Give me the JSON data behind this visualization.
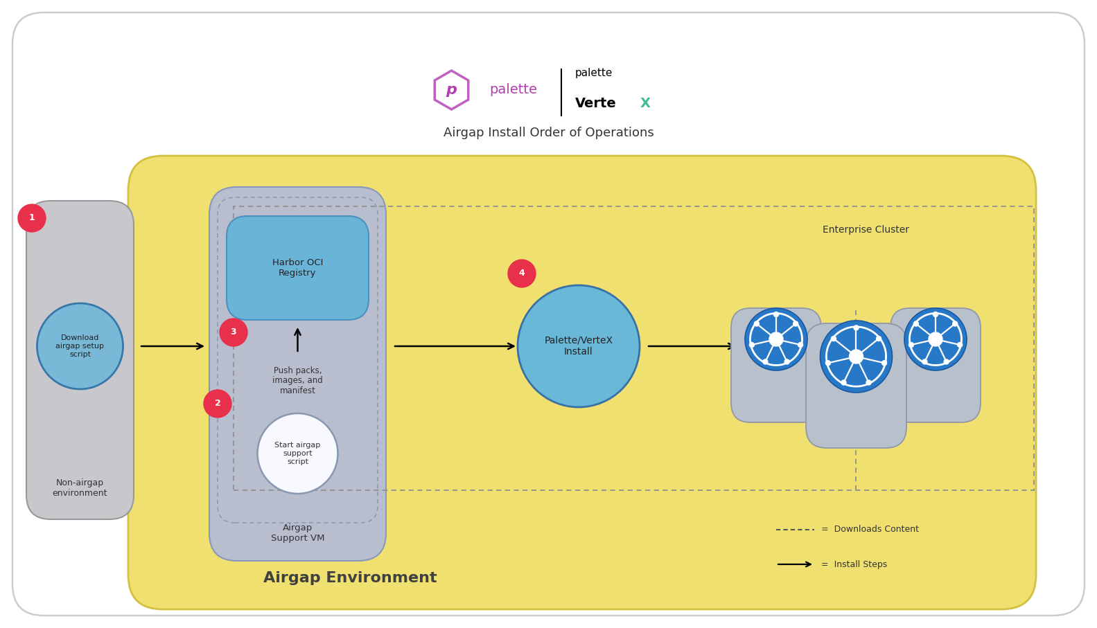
{
  "title": "Airgap Install Order of Operations",
  "bg_color": "#ffffff",
  "outer_border_color": "#cccccc",
  "airgap_env_color": "#f0e070",
  "airgap_env_border": "#d4c040",
  "nonairgap_box_color": "#c8c8cc",
  "nonairgap_box_border": "#999999",
  "support_vm_color": "#b8bece",
  "support_vm_border": "#8898b8",
  "harbor_box_color": "#6ab4d8",
  "harbor_box_border": "#4a90c0",
  "harbor_text": "Harbor OCI\nRegistry",
  "circle_color": "#7ab8d8",
  "circle_border": "#3878a8",
  "white_circle_color": "#f8f8ff",
  "white_circle_border": "#8898b0",
  "palette_install_color": "#6ab8d8",
  "palette_install_border": "#3870a8",
  "step_badge_color": "#e8304a",
  "step_badge_text_color": "#ffffff",
  "kubernetes_bg_color": "#b8c0cc",
  "kubernetes_node_border": "#9098a8",
  "kubernetes_icon_bg": "#2878c8",
  "kubernetes_icon_fg": "#ffffff",
  "nonairgap_label": "Non-airgap\nenvironment",
  "nonairgap_circle_text": "Download\nairgap setup\nscript",
  "support_vm_label": "Airgap\nSupport VM",
  "push_packs_text": "Push packs,\nimages, and\nmanifest",
  "start_airgap_text": "Start airgap\nsupport\nscript",
  "palette_install_text": "Palette/VerteX\nInstall",
  "enterprise_cluster_label": "Enterprise Cluster",
  "airgap_env_label": "Airgap Environment",
  "legend_dotted": "Downloads Content",
  "legend_arrow": "Install Steps",
  "dotted_rect_color": "#909090",
  "inner_dotted_color": "#8898b0"
}
